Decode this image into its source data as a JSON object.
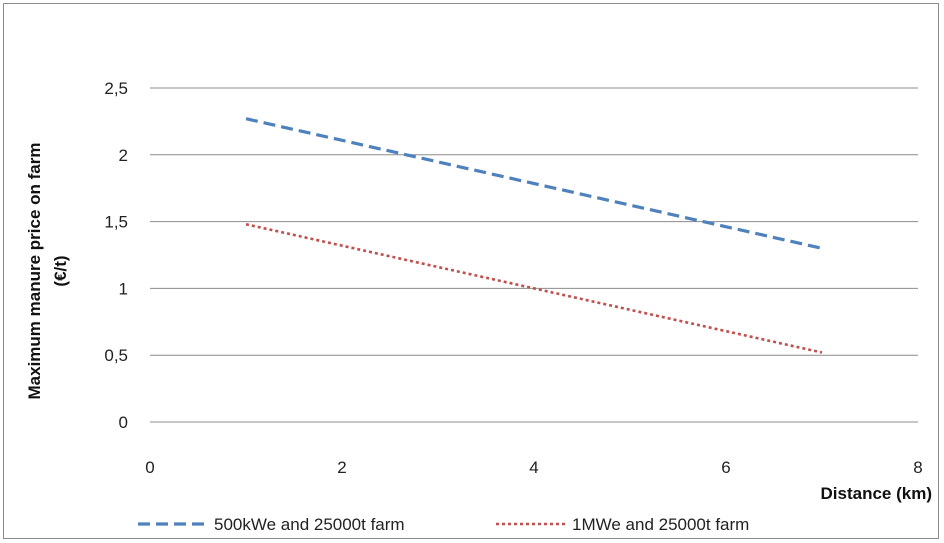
{
  "chart_data": {
    "type": "line",
    "title": "",
    "xlabel": "Distance (km)",
    "ylabel_line1": "Maximum manure price on farm",
    "ylabel_line2": "(€/t)",
    "xlim": [
      0,
      8
    ],
    "ylim": [
      0,
      2.5
    ],
    "x_ticks": [
      "0",
      "2",
      "4",
      "6",
      "8"
    ],
    "y_ticks": [
      "0",
      "0,5",
      "1",
      "1,5",
      "2",
      "2,5"
    ],
    "grid": "horizontal",
    "legend_position": "bottom",
    "series": [
      {
        "name": "500kWe and 25000t farm",
        "color": "#4f81bd",
        "style": "dashed",
        "x": [
          1,
          7
        ],
        "y": [
          2.27,
          1.3
        ]
      },
      {
        "name": "1MWe and 25000t farm",
        "color": "#c0504d",
        "style": "dotted",
        "x": [
          1,
          7
        ],
        "y": [
          1.48,
          0.52
        ]
      }
    ]
  }
}
